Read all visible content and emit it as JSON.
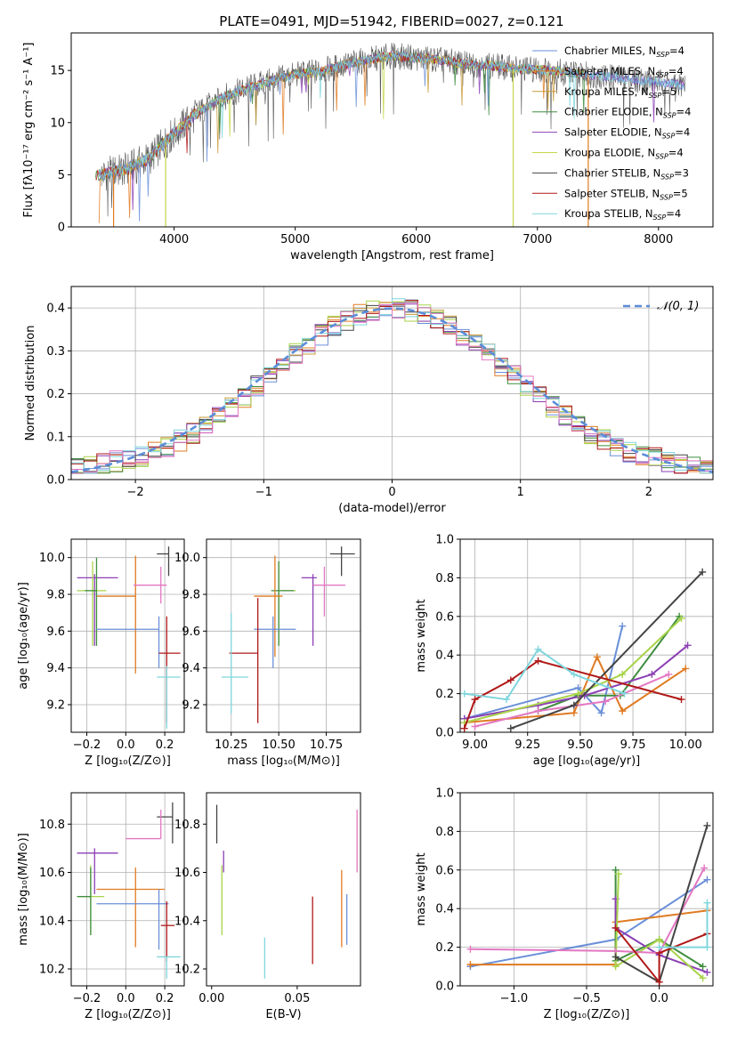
{
  "title": "PLATE=0491, MJD=51942, FIBERID=0027, z=0.121",
  "colors": {
    "chab_miles": "#6a8fd8",
    "salp_miles": "#e07b22",
    "krou_miles": "#c79a3a",
    "chab_elodie": "#3f8d3f",
    "salp_elodie": "#8b3fb5",
    "krou_elodie": "#c6d64a",
    "chab_stelib": "#444444",
    "salp_stelib": "#b01818",
    "krou_stelib": "#7fd6dd",
    "pink": "#e377c2",
    "lime": "#a8d34a",
    "dashed": "#5b8dd9"
  },
  "chart_data": [
    {
      "id": "spectrum",
      "type": "line",
      "xlabel": "wavelength [Angstrom, rest frame]",
      "ylabel": "Flux [fλ10⁻¹⁷ erg cm⁻² s⁻¹ A⁻¹]",
      "xlim": [
        3150,
        8450
      ],
      "ylim": [
        0,
        18.6
      ],
      "xticks": [
        4000,
        5000,
        6000,
        7000,
        8000
      ],
      "yticks": [
        0,
        5,
        10,
        15
      ],
      "grid": false,
      "legend_position": "top-right",
      "continuum": {
        "x": [
          3400,
          3600,
          3800,
          4000,
          4200,
          4400,
          4600,
          4800,
          5000,
          5200,
          5400,
          5600,
          5800,
          6000,
          6200,
          6400,
          6600,
          6800,
          7000,
          7200,
          7400,
          7600,
          7800,
          8000,
          8200
        ],
        "y": [
          5.0,
          5.5,
          6.6,
          9.0,
          11.0,
          12.4,
          13.3,
          14.0,
          14.6,
          14.9,
          15.5,
          16.0,
          16.4,
          16.2,
          16.0,
          15.6,
          15.5,
          15.2,
          15.1,
          14.9,
          14.6,
          14.4,
          14.1,
          13.9,
          13.6
        ]
      },
      "series": [
        {
          "name": "Chabrier MILES, N_SSP=4",
          "label": "Chabrier MILES, N",
          "sub": "SSP",
          "suffix": "=4"
        },
        {
          "name": "Salpeter MILES, N_SSP=4",
          "label": "Salpeter MILES, N",
          "sub": "SSP",
          "suffix": "=4"
        },
        {
          "name": "Kroupa MILES, N_SSP=5",
          "label": "Kroupa MILES, N",
          "sub": "SSP",
          "suffix": "=5"
        },
        {
          "name": "Chabrier ELODIE, N_SSP=4",
          "label": "Chabrier ELODIE, N",
          "sub": "SSP",
          "suffix": "=4"
        },
        {
          "name": "Salpeter ELODIE, N_SSP=4",
          "label": "Salpeter ELODIE, N",
          "sub": "SSP",
          "suffix": "=4"
        },
        {
          "name": "Kroupa ELODIE, N_SSP=4",
          "label": "Kroupa ELODIE, N",
          "sub": "SSP",
          "suffix": "=4"
        },
        {
          "name": "Chabrier STELIB, N_SSP=3",
          "label": "Chabrier STELIB, N",
          "sub": "SSP",
          "suffix": "=3"
        },
        {
          "name": "Salpeter STELIB, N_SSP=5",
          "label": "Salpeter STELIB, N",
          "sub": "SSP",
          "suffix": "=5"
        },
        {
          "name": "Kroupa STELIB, N_SSP=4",
          "label": "Kroupa STELIB, N",
          "sub": "SSP",
          "suffix": "=4"
        }
      ],
      "drops": [
        {
          "x": 3500,
          "color": "salp_miles"
        },
        {
          "x": 3930,
          "color": "krou_elodie"
        },
        {
          "x": 6800,
          "color": "krou_elodie"
        },
        {
          "x": 7420,
          "color": "salp_miles"
        }
      ]
    },
    {
      "id": "residuals",
      "type": "step",
      "xlabel": "(data-model)/error",
      "ylabel": "Normed distribution",
      "xlim": [
        -2.5,
        2.5
      ],
      "ylim": [
        0,
        0.45
      ],
      "xticks": [
        -2,
        -1,
        0,
        1,
        2
      ],
      "yticks": [
        0.0,
        0.1,
        0.2,
        0.3,
        0.4
      ],
      "grid": true,
      "legend": "𝒩(0, 1)",
      "legend_position": "top-right",
      "bin_width": 0.1
    },
    {
      "id": "age_vs_Z",
      "type": "errorbar",
      "xlabel": "Z [log₁₀(Z/Z⊙)]",
      "ylabel": "age  [log₁₀(age/yr)]",
      "xlim": [
        -0.28,
        0.3
      ],
      "ylim": [
        9.05,
        10.1
      ],
      "xticks": [
        -0.2,
        0.0,
        0.2
      ],
      "yticks": [
        9.2,
        9.4,
        9.6,
        9.8,
        10.0
      ],
      "grid": true,
      "points": [
        {
          "c": "chab_stelib",
          "x": 0.22,
          "y": 10.02,
          "xe": [
            0.06,
            0.0
          ],
          "ye": [
            0.12,
            0.04
          ]
        },
        {
          "c": "salp_miles",
          "x": 0.05,
          "y": 9.79,
          "xe": [
            0.2,
            0.0
          ],
          "ye": [
            0.42,
            0.22
          ]
        },
        {
          "c": "pink",
          "x": 0.18,
          "y": 9.85,
          "xe": [
            0.14,
            0.03
          ],
          "ye": [
            0.1,
            0.1
          ]
        },
        {
          "c": "salp_elodie",
          "x": -0.16,
          "y": 9.89,
          "xe": [
            0.09,
            0.12
          ],
          "ye": [
            0.37,
            0.02
          ]
        },
        {
          "c": "lime",
          "x": -0.17,
          "y": 9.82,
          "xe": [
            0.08,
            0.07
          ],
          "ye": [
            0.3,
            0.16
          ]
        },
        {
          "c": "chab_elodie",
          "x": -0.15,
          "y": 9.82,
          "xe": [
            0.06,
            0.0
          ],
          "ye": [
            0.3,
            0.18
          ]
        },
        {
          "c": "chab_miles",
          "x": 0.17,
          "y": 9.61,
          "xe": [
            0.32,
            0.0
          ],
          "ye": [
            0.21,
            0.07
          ]
        },
        {
          "c": "salp_stelib",
          "x": 0.21,
          "y": 9.48,
          "xe": [
            0.04,
            0.07
          ],
          "ye": [
            0.38,
            0.2
          ]
        },
        {
          "c": "krou_stelib",
          "x": 0.21,
          "y": 9.35,
          "xe": [
            0.05,
            0.07
          ],
          "ye": [
            0.28,
            0.06
          ]
        }
      ]
    },
    {
      "id": "age_vs_mass",
      "type": "errorbar",
      "xlabel": "mass [log₁₀(M/M⊙)]",
      "ylabel": "",
      "xlim": [
        10.12,
        10.93
      ],
      "ylim": [
        9.05,
        10.1
      ],
      "xticks": [
        10.25,
        10.5,
        10.75
      ],
      "yticks": [
        9.2,
        9.4,
        9.6,
        9.8,
        10.0
      ],
      "grid": true,
      "points": [
        {
          "c": "chab_stelib",
          "x": 10.83,
          "y": 10.02,
          "xe": [
            0.06,
            0.07
          ],
          "ye": [
            0.12,
            0.04
          ]
        },
        {
          "c": "salp_elodie",
          "x": 10.68,
          "y": 9.89,
          "xe": [
            0.06,
            0.02
          ],
          "ye": [
            0.37,
            0.02
          ]
        },
        {
          "c": "pink",
          "x": 10.74,
          "y": 9.85,
          "xe": [
            0.06,
            0.11
          ],
          "ye": [
            0.17,
            0.1
          ]
        },
        {
          "c": "lime",
          "x": 10.5,
          "y": 9.82,
          "xe": [
            0.0,
            0.09
          ],
          "ye": [
            0.3,
            0.16
          ]
        },
        {
          "c": "chab_elodie",
          "x": 10.5,
          "y": 9.82,
          "xe": [
            0.04,
            0.08
          ],
          "ye": [
            0.3,
            0.16
          ]
        },
        {
          "c": "salp_miles",
          "x": 10.48,
          "y": 9.79,
          "xe": [
            0.11,
            0.04
          ],
          "ye": [
            0.33,
            0.22
          ]
        },
        {
          "c": "chab_miles",
          "x": 10.47,
          "y": 9.61,
          "xe": [
            0.1,
            0.12
          ],
          "ye": [
            0.21,
            0.07
          ]
        },
        {
          "c": "salp_stelib",
          "x": 10.39,
          "y": 9.48,
          "xe": [
            0.15,
            0.0
          ],
          "ye": [
            0.38,
            0.3
          ]
        },
        {
          "c": "krou_stelib",
          "x": 10.25,
          "y": 9.35,
          "xe": [
            0.05,
            0.09
          ],
          "ye": [
            0.2,
            0.35
          ]
        }
      ]
    },
    {
      "id": "weight_vs_age",
      "type": "line",
      "xlabel": "age  [log₁₀(age/yr)]",
      "ylabel": "mass weight",
      "xlim": [
        8.93,
        10.13
      ],
      "ylim": [
        0,
        1
      ],
      "xticks": [
        9.0,
        9.25,
        9.5,
        9.75,
        10.0
      ],
      "yticks": [
        0.0,
        0.2,
        0.4,
        0.6,
        0.8,
        1.0
      ],
      "grid": true,
      "series": [
        {
          "c": "chab_miles",
          "x": [
            8.95,
            9.49,
            9.6,
            9.7
          ],
          "y": [
            0.07,
            0.23,
            0.1,
            0.55
          ]
        },
        {
          "c": "salp_miles",
          "x": [
            8.95,
            9.47,
            9.58,
            9.7,
            10.0
          ],
          "y": [
            0.05,
            0.1,
            0.39,
            0.11,
            0.33
          ]
        },
        {
          "c": "chab_elodie",
          "x": [
            9.3,
            9.49,
            9.69,
            9.97
          ],
          "y": [
            0.11,
            0.19,
            0.19,
            0.6
          ]
        },
        {
          "c": "salp_elodie",
          "x": [
            8.95,
            9.3,
            9.52,
            9.84,
            10.01
          ],
          "y": [
            0.07,
            0.14,
            0.19,
            0.3,
            0.45
          ]
        },
        {
          "c": "lime",
          "x": [
            8.95,
            9.49,
            9.7,
            9.98
          ],
          "y": [
            0.05,
            0.2,
            0.3,
            0.59
          ]
        },
        {
          "c": "pink",
          "x": [
            9.0,
            9.3,
            9.62,
            9.92
          ],
          "y": [
            0.03,
            0.11,
            0.16,
            0.3
          ]
        },
        {
          "c": "chab_stelib",
          "x": [
            9.17,
            9.47,
            10.08
          ],
          "y": [
            0.02,
            0.14,
            0.83
          ]
        },
        {
          "c": "salp_stelib",
          "x": [
            8.95,
            9.0,
            9.17,
            9.3,
            9.98
          ],
          "y": [
            0.02,
            0.17,
            0.27,
            0.37,
            0.17
          ]
        },
        {
          "c": "krou_stelib",
          "x": [
            8.95,
            9.15,
            9.3,
            9.47,
            9.71
          ],
          "y": [
            0.2,
            0.17,
            0.43,
            0.3,
            0.2
          ]
        }
      ]
    },
    {
      "id": "mass_vs_Z",
      "type": "errorbar",
      "xlabel": "Z [log₁₀(Z/Z⊙)]",
      "ylabel": "mass [log₁₀(M/M⊙)]",
      "xlim": [
        -0.28,
        0.3
      ],
      "ylim": [
        10.13,
        10.93
      ],
      "xticks": [
        -0.2,
        0.0,
        0.2
      ],
      "yticks": [
        10.2,
        10.4,
        10.6,
        10.8
      ],
      "grid": true,
      "points": [
        {
          "c": "chab_stelib",
          "x": 0.24,
          "y": 10.83,
          "xe": [
            0.08,
            0.0
          ],
          "ye": [
            0.11,
            0.06
          ]
        },
        {
          "c": "pink",
          "x": 0.18,
          "y": 10.74,
          "xe": [
            0.18,
            0.0
          ],
          "ye": [
            0.0,
            0.12
          ]
        },
        {
          "c": "salp_elodie",
          "x": -0.16,
          "y": 10.68,
          "xe": [
            0.09,
            0.12
          ],
          "ye": [
            0.17,
            0.02
          ]
        },
        {
          "c": "salp_miles",
          "x": 0.05,
          "y": 10.53,
          "xe": [
            0.2,
            0.15
          ],
          "ye": [
            0.24,
            0.09
          ]
        },
        {
          "c": "lime",
          "x": -0.18,
          "y": 10.5,
          "xe": [
            0.07,
            0.07
          ],
          "ye": [
            0.16,
            0.13
          ]
        },
        {
          "c": "chab_elodie",
          "x": -0.18,
          "y": 10.5,
          "xe": [
            0.07,
            0.0
          ],
          "ye": [
            0.16,
            0.12
          ]
        },
        {
          "c": "chab_miles",
          "x": 0.17,
          "y": 10.47,
          "xe": [
            0.32,
            0.05
          ],
          "ye": [
            0.19,
            0.06
          ]
        },
        {
          "c": "salp_stelib",
          "x": 0.21,
          "y": 10.38,
          "xe": [
            0.03,
            0.04
          ],
          "ye": [
            0.15,
            0.1
          ]
        },
        {
          "c": "krou_stelib",
          "x": 0.21,
          "y": 10.25,
          "xe": [
            0.05,
            0.07
          ],
          "ye": [
            0.09,
            0.0
          ]
        }
      ]
    },
    {
      "id": "mass_vs_ebv",
      "type": "errorbar",
      "xlabel": "E(B-V)",
      "ylabel": "",
      "xlim": [
        -0.003,
        0.087
      ],
      "ylim": [
        10.13,
        10.93
      ],
      "xticks": [
        0.0,
        0.05
      ],
      "yticks": [
        10.2,
        10.4,
        10.6,
        10.8
      ],
      "grid": false,
      "segments": [
        {
          "c": "chab_stelib",
          "x": 0.003,
          "y0": 10.72,
          "y1": 10.88
        },
        {
          "c": "salp_elodie",
          "x": 0.007,
          "y0": 10.6,
          "y1": 10.69
        },
        {
          "c": "lime",
          "x": 0.006,
          "y0": 10.34,
          "y1": 10.63
        },
        {
          "c": "krou_stelib",
          "x": 0.031,
          "y0": 10.16,
          "y1": 10.33
        },
        {
          "c": "salp_stelib",
          "x": 0.059,
          "y0": 10.22,
          "y1": 10.5
        },
        {
          "c": "salp_miles",
          "x": 0.076,
          "y0": 10.29,
          "y1": 10.61
        },
        {
          "c": "chab_miles",
          "x": 0.079,
          "y0": 10.3,
          "y1": 10.51
        },
        {
          "c": "pink",
          "x": 0.085,
          "y0": 10.6,
          "y1": 10.86
        }
      ]
    },
    {
      "id": "weight_vs_Z",
      "type": "line",
      "xlabel": "Z [log₁₀(Z/Z⊙)]",
      "ylabel": "mass weight",
      "xlim": [
        -1.37,
        0.37
      ],
      "ylim": [
        0,
        1
      ],
      "xticks": [
        -1.0,
        -0.5,
        0.0
      ],
      "yticks": [
        0.0,
        0.2,
        0.4,
        0.6,
        0.8,
        1.0
      ],
      "grid": true,
      "series": [
        {
          "c": "chab_miles",
          "x": [
            -1.3,
            -0.3,
            0.33
          ],
          "y": [
            0.1,
            0.24,
            0.55
          ]
        },
        {
          "c": "salp_miles",
          "x": [
            -1.3,
            -0.3,
            -0.3,
            0.33
          ],
          "y": [
            0.11,
            0.11,
            0.33,
            0.39
          ]
        },
        {
          "c": "chab_elodie",
          "x": [
            -0.3,
            -0.3,
            0.0,
            0.3
          ],
          "y": [
            0.6,
            0.13,
            0.24,
            0.1
          ]
        },
        {
          "c": "salp_elodie",
          "x": [
            -0.3,
            -0.3,
            0.0,
            0.33
          ],
          "y": [
            0.45,
            0.3,
            0.16,
            0.07
          ]
        },
        {
          "c": "lime",
          "x": [
            -0.28,
            -0.3,
            0.0,
            0.3
          ],
          "y": [
            0.58,
            0.1,
            0.24,
            0.04
          ]
        },
        {
          "c": "pink",
          "x": [
            -1.3,
            -0.3,
            0.0,
            0.31
          ],
          "y": [
            0.19,
            0.18,
            0.17,
            0.61
          ]
        },
        {
          "c": "chab_stelib",
          "x": [
            -0.3,
            0.0,
            0.33
          ],
          "y": [
            0.15,
            0.02,
            0.83
          ]
        },
        {
          "c": "salp_stelib",
          "x": [
            -0.3,
            0.0,
            0.0,
            0.33
          ],
          "y": [
            0.3,
            0.02,
            0.17,
            0.27
          ]
        },
        {
          "c": "krou_stelib",
          "x": [
            0.0,
            0.33,
            0.33
          ],
          "y": [
            0.2,
            0.2,
            0.43
          ]
        }
      ]
    }
  ]
}
